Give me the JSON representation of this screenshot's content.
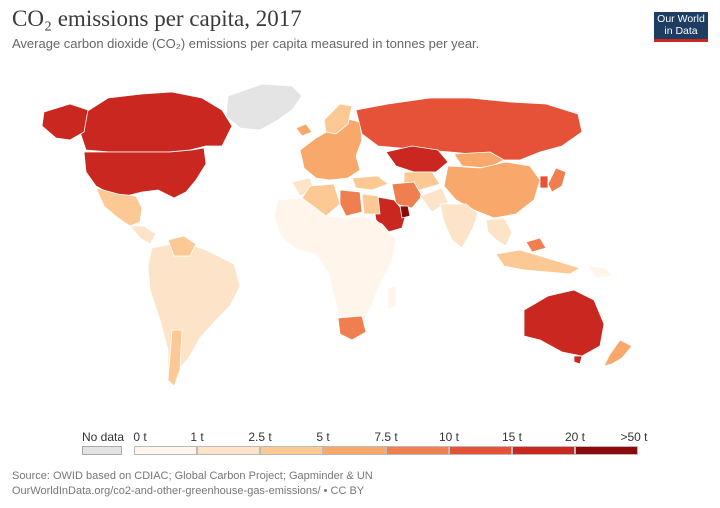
{
  "title": "CO₂ emissions per capita, 2017",
  "subtitle": "Average carbon dioxide (CO₂) emissions per capita measured in tonnes per year.",
  "logo": {
    "line1": "Our World",
    "line2": "in Data",
    "bg": "#1d3d63",
    "accent": "#ce261e"
  },
  "legend": {
    "no_data_label": "No data",
    "no_data_color": "#e4e4e4",
    "thresholds": [
      "0 t",
      "1 t",
      "2.5 t",
      "5 t",
      "7.5 t",
      "10 t",
      "15 t",
      "20 t",
      ">50 t"
    ],
    "colors": [
      "#fff5eb",
      "#fde3c7",
      "#fcc995",
      "#f8a86a",
      "#f07f4f",
      "#e65237",
      "#c9271f",
      "#8c0a0c"
    ]
  },
  "regions": [
    {
      "name": "Greenland",
      "bin": "no-data"
    },
    {
      "name": "Canada",
      "bin": "15-20 t"
    },
    {
      "name": "United States",
      "bin": "15-20 t"
    },
    {
      "name": "Russia",
      "bin": "10-15 t"
    },
    {
      "name": "Kazakhstan",
      "bin": "15-20 t"
    },
    {
      "name": "Saudi Arabia",
      "bin": "15-20 t"
    },
    {
      "name": "Australia",
      "bin": "15-20 t"
    },
    {
      "name": "China",
      "bin": "5-7.5 t"
    },
    {
      "name": "Iran",
      "bin": "7.5-10 t"
    },
    {
      "name": "Europe",
      "bin": "5-7.5 t"
    },
    {
      "name": "Mexico",
      "bin": "2.5-5 t"
    },
    {
      "name": "South America",
      "bin": "1-2.5 t"
    },
    {
      "name": "South Africa",
      "bin": "7.5-10 t"
    },
    {
      "name": "Libya",
      "bin": "7.5-10 t"
    },
    {
      "name": "Algeria",
      "bin": "2.5-5 t"
    },
    {
      "name": "Sub-Saharan Africa",
      "bin": "0-1 t"
    },
    {
      "name": "India",
      "bin": "1-2.5 t"
    },
    {
      "name": "Southeast Asia",
      "bin": "1-2.5 t"
    },
    {
      "name": "Japan",
      "bin": "7.5-10 t"
    },
    {
      "name": "New Zealand",
      "bin": "5-7.5 t"
    }
  ],
  "footer": {
    "source": "Source: OWID based on CDIAC; Global Carbon Project; Gapminder & UN",
    "url": "OurWorldInData.org/co2-and-other-greenhouse-gas-emissions/ • CC BY"
  }
}
